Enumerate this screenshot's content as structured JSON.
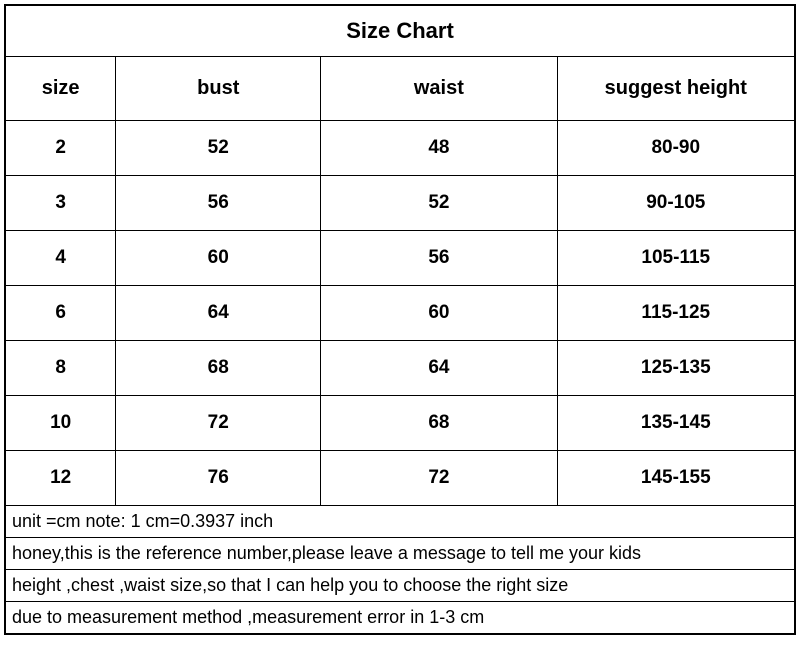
{
  "title": "Size Chart",
  "columns": [
    "size",
    "bust",
    "waist",
    "suggest height"
  ],
  "rows": [
    {
      "size": "2",
      "bust": "52",
      "waist": "48",
      "height": "80-90"
    },
    {
      "size": "3",
      "bust": "56",
      "waist": "52",
      "height": "90-105"
    },
    {
      "size": "4",
      "bust": "60",
      "waist": "56",
      "height": "105-115"
    },
    {
      "size": "6",
      "bust": "64",
      "waist": "60",
      "height": "115-125"
    },
    {
      "size": "8",
      "bust": "68",
      "waist": "64",
      "height": "125-135"
    },
    {
      "size": "10",
      "bust": "72",
      "waist": "68",
      "height": "135-145"
    },
    {
      "size": "12",
      "bust": "76",
      "waist": "72",
      "height": "145-155"
    }
  ],
  "notes": [
    "unit =cm  note: 1 cm=0.3937 inch",
    "honey,this is the reference number,please leave a message to tell me your kids",
    "height ,chest ,waist size,so that I can help you to choose the right size",
    "due to measurement method ,measurement error in 1-3 cm"
  ],
  "styling": {
    "border_color": "#000000",
    "background_color": "#ffffff",
    "title_fontsize": 22,
    "header_fontsize": 20,
    "data_fontsize": 19,
    "note_fontsize": 18,
    "col_widths_pct": [
      14,
      26,
      30,
      30
    ]
  }
}
